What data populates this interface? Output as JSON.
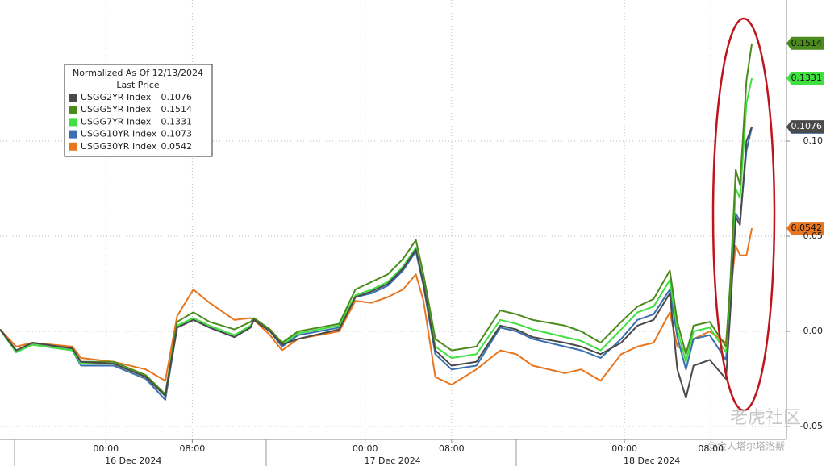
{
  "chart_data": {
    "type": "line",
    "legend_title": "Normalized As Of 12/13/2024",
    "legend_subtitle": "Last Price",
    "date_labels": [
      "16 Dec 2024",
      "17 Dec 2024",
      "18 Dec 2024"
    ],
    "watermarks": [
      "老虎社区",
      "@金人塔尔塔洛斯"
    ],
    "x": [
      -9.8,
      -8.3,
      -6.8,
      -3.1,
      -2.3,
      0.7,
      3.7,
      5.5,
      6.6,
      8.1,
      9.6,
      11.9,
      13.4,
      13.7,
      15.2,
      16.3,
      17.8,
      21.6,
      23.1,
      24.6,
      26.1,
      27.5,
      28.7,
      29.4,
      30.5,
      32.0,
      34.3,
      36.5,
      38.0,
      39.5,
      42.5,
      44.0,
      45.8,
      47.7,
      49.2,
      50.7,
      52.2,
      52.9,
      53.7,
      54.4,
      55.9,
      57.4,
      57.8,
      58.3,
      58.7,
      59.3,
      59.8
    ],
    "xlim": [
      -9.8,
      63
    ],
    "xticks": [
      {
        "value": 0,
        "label": "00:00"
      },
      {
        "value": 8,
        "label": "08:00"
      },
      {
        "value": 24,
        "label": "00:00"
      },
      {
        "value": 32,
        "label": "08:00"
      },
      {
        "value": 48,
        "label": "00:00"
      },
      {
        "value": 56,
        "label": "08:00"
      }
    ],
    "ylim": [
      -0.0568,
      0.1742
    ],
    "yticks": [
      {
        "value": 0.1,
        "label": "0.10"
      },
      0.05,
      {
        "value": 0,
        "label": "0.00"
      },
      -0.05
    ],
    "grid": true,
    "series": [
      {
        "name": "USGG2YR Index",
        "color": "#4a4a4a",
        "values": [
          0.001,
          -0.01,
          -0.006,
          -0.009,
          -0.016,
          -0.017,
          -0.024,
          -0.034,
          0.002,
          0.006,
          0.002,
          -0.003,
          0.002,
          0.006,
          0.0,
          -0.007,
          -0.004,
          0.001,
          0.018,
          0.021,
          0.025,
          0.033,
          0.043,
          0.025,
          -0.01,
          -0.018,
          -0.016,
          0.003,
          0.001,
          -0.003,
          -0.006,
          -0.008,
          -0.012,
          -0.006,
          0.003,
          0.006,
          0.02,
          -0.02,
          -0.035,
          -0.018,
          -0.015,
          -0.025,
          0.01,
          0.06,
          0.056,
          0.1,
          0.1076
        ]
      },
      {
        "name": "USGG5YR Index",
        "color": "#4b8b1d",
        "values": [
          0.001,
          -0.01,
          -0.006,
          -0.009,
          -0.016,
          -0.016,
          -0.023,
          -0.033,
          0.005,
          0.01,
          0.005,
          0.001,
          0.005,
          0.007,
          0.001,
          -0.006,
          0.0,
          0.004,
          0.022,
          0.026,
          0.03,
          0.038,
          0.048,
          0.03,
          -0.004,
          -0.01,
          -0.008,
          0.011,
          0.009,
          0.006,
          0.003,
          0.0,
          -0.006,
          0.005,
          0.013,
          0.017,
          0.032,
          0.005,
          -0.012,
          0.003,
          0.005,
          -0.008,
          0.026,
          0.085,
          0.077,
          0.132,
          0.1514
        ]
      },
      {
        "name": "USGG7YR Index",
        "color": "#3fe03f",
        "values": [
          0.001,
          -0.011,
          -0.007,
          -0.01,
          -0.017,
          -0.017,
          -0.024,
          -0.034,
          0.003,
          0.007,
          0.003,
          -0.002,
          0.003,
          0.006,
          0.0,
          -0.007,
          -0.001,
          0.003,
          0.019,
          0.022,
          0.026,
          0.034,
          0.044,
          0.026,
          -0.008,
          -0.014,
          -0.012,
          0.006,
          0.004,
          0.001,
          -0.003,
          -0.005,
          -0.01,
          0.001,
          0.01,
          0.013,
          0.027,
          0.001,
          -0.016,
          0.0,
          0.002,
          -0.011,
          0.022,
          0.075,
          0.07,
          0.12,
          0.1331
        ]
      },
      {
        "name": "USGG10YR Index",
        "color": "#3a6fb0",
        "values": [
          0.001,
          -0.011,
          -0.007,
          -0.01,
          -0.018,
          -0.018,
          -0.025,
          -0.036,
          0.002,
          0.006,
          0.002,
          -0.003,
          0.003,
          0.006,
          0.0,
          -0.008,
          -0.002,
          0.002,
          0.018,
          0.02,
          0.024,
          0.032,
          0.042,
          0.024,
          -0.012,
          -0.02,
          -0.018,
          0.002,
          0.0,
          -0.004,
          -0.008,
          -0.01,
          -0.014,
          -0.004,
          0.006,
          0.009,
          0.022,
          -0.003,
          -0.02,
          -0.004,
          -0.002,
          -0.015,
          0.015,
          0.062,
          0.058,
          0.095,
          0.1073
        ]
      },
      {
        "name": "USGG30YR Index",
        "color": "#e8761e",
        "values": [
          0.001,
          -0.008,
          -0.006,
          -0.008,
          -0.014,
          -0.016,
          -0.02,
          -0.026,
          0.008,
          0.022,
          0.015,
          0.006,
          0.007,
          0.006,
          -0.002,
          -0.01,
          -0.004,
          0.0,
          0.016,
          0.015,
          0.018,
          0.022,
          0.03,
          0.016,
          -0.024,
          -0.028,
          -0.02,
          -0.01,
          -0.012,
          -0.018,
          -0.022,
          -0.02,
          -0.026,
          -0.012,
          -0.008,
          -0.006,
          0.01,
          -0.008,
          -0.01,
          -0.004,
          0.0,
          -0.006,
          0.02,
          0.045,
          0.04,
          0.04,
          0.0542
        ]
      }
    ]
  }
}
